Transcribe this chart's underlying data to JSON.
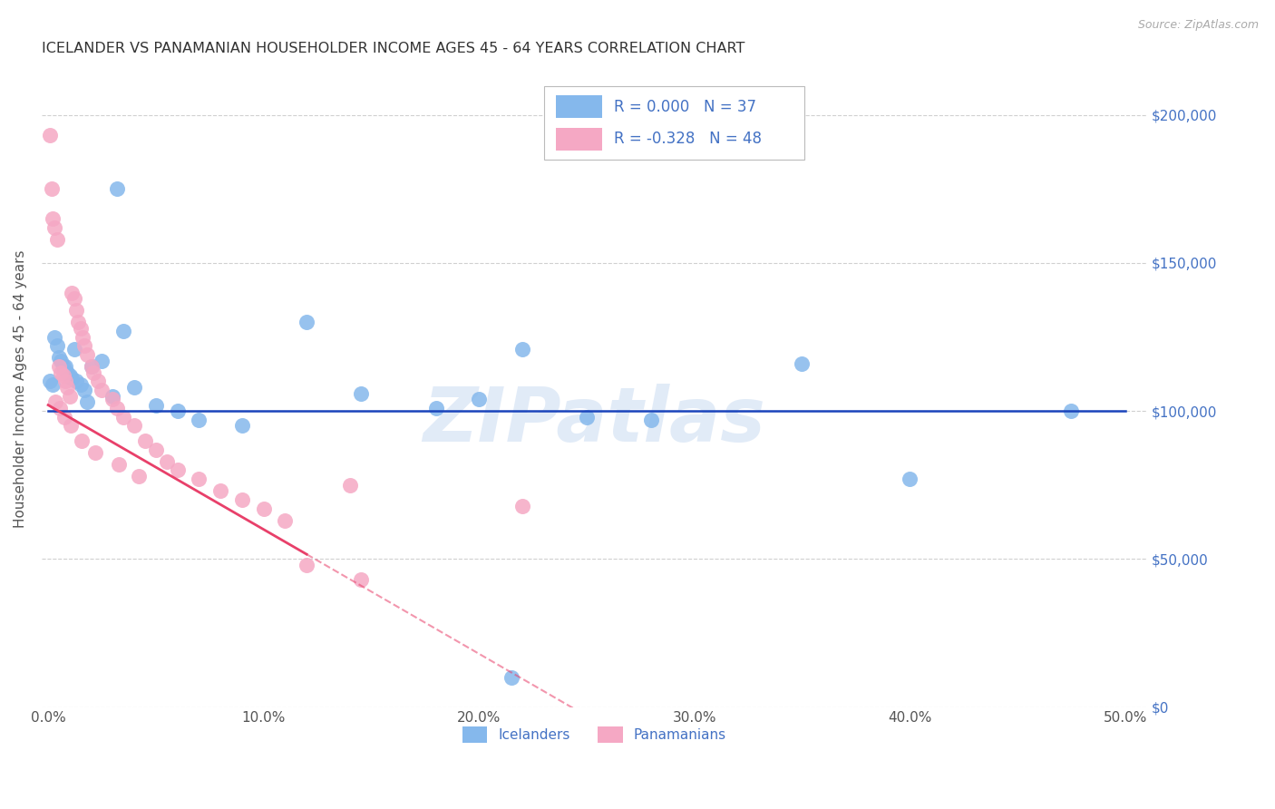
{
  "title": "ICELANDER VS PANAMANIAN HOUSEHOLDER INCOME AGES 45 - 64 YEARS CORRELATION CHART",
  "source": "Source: ZipAtlas.com",
  "ylabel_label": "Householder Income Ages 45 - 64 years",
  "xlim": [
    -0.3,
    51
  ],
  "ylim": [
    5000,
    215000
  ],
  "watermark": "ZIPatlas",
  "blue_R": "0.000",
  "blue_N": "37",
  "pink_R": "-0.328",
  "pink_N": "48",
  "blue_color": "#85B8EC",
  "pink_color": "#F5A8C4",
  "trend_blue_color": "#1A44BB",
  "trend_pink_color": "#E8406A",
  "trend_pink_dash_color": "#E8406A",
  "grid_color": "#D0D0D0",
  "right_label_color": "#4472C4",
  "text_color": "#555555",
  "background_color": "#FFFFFF",
  "blue_x": [
    0.1,
    0.2,
    0.3,
    0.4,
    0.5,
    0.6,
    0.7,
    0.8,
    0.9,
    1.0,
    1.1,
    1.2,
    1.3,
    1.5,
    1.7,
    2.0,
    2.5,
    3.0,
    3.2,
    4.0,
    5.0,
    6.0,
    7.0,
    9.0,
    12.0,
    14.5,
    18.0,
    20.0,
    22.0,
    25.0,
    28.0,
    35.0,
    40.0,
    47.5,
    3.5,
    1.8,
    21.5
  ],
  "blue_y": [
    110000,
    109000,
    125000,
    122000,
    118000,
    117000,
    115000,
    115000,
    113000,
    112000,
    111000,
    121000,
    110000,
    109000,
    107000,
    115000,
    117000,
    105000,
    175000,
    108000,
    102000,
    100000,
    97000,
    95000,
    130000,
    106000,
    101000,
    104000,
    121000,
    98000,
    97000,
    116000,
    77000,
    100000,
    127000,
    103000,
    10000
  ],
  "pink_x": [
    0.1,
    0.15,
    0.2,
    0.3,
    0.4,
    0.5,
    0.6,
    0.7,
    0.8,
    0.9,
    1.0,
    1.1,
    1.2,
    1.3,
    1.4,
    1.5,
    1.6,
    1.7,
    1.8,
    2.0,
    2.1,
    2.3,
    2.5,
    3.0,
    3.2,
    3.5,
    4.0,
    4.5,
    5.0,
    5.5,
    6.0,
    7.0,
    8.0,
    9.0,
    10.0,
    11.0,
    12.0,
    14.0,
    0.35,
    0.55,
    0.75,
    1.05,
    1.55,
    2.2,
    3.3,
    4.2,
    14.5,
    22.0
  ],
  "pink_y": [
    193000,
    175000,
    165000,
    162000,
    158000,
    115000,
    113000,
    112000,
    110000,
    108000,
    105000,
    140000,
    138000,
    134000,
    130000,
    128000,
    125000,
    122000,
    119000,
    115000,
    113000,
    110000,
    107000,
    104000,
    101000,
    98000,
    95000,
    90000,
    87000,
    83000,
    80000,
    77000,
    73000,
    70000,
    67000,
    63000,
    48000,
    75000,
    103000,
    101000,
    98000,
    95000,
    90000,
    86000,
    82000,
    78000,
    43000,
    68000
  ],
  "yticks": [
    0,
    50000,
    100000,
    150000,
    200000
  ],
  "ytick_labels": [
    "$0",
    "$50,000",
    "$100,000",
    "$150,000",
    "$200,000"
  ],
  "xticks": [
    0,
    10,
    20,
    30,
    40,
    50
  ],
  "xtick_labels": [
    "0.0%",
    "10.0%",
    "20.0%",
    "30.0%",
    "40.0%",
    "50.0%"
  ]
}
